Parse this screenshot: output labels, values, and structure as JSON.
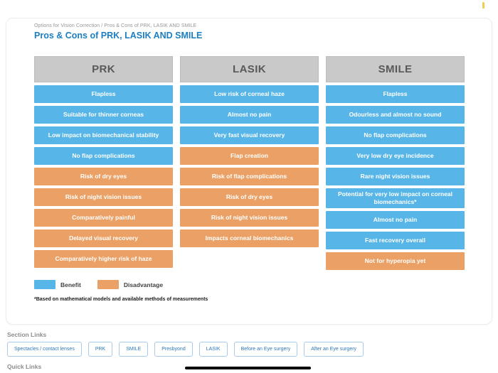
{
  "page": {
    "breadcrumb": "Options for Vision Correction / Pros & Cons of PRK, LASIK AND SMILE",
    "title": "Pros & Cons of PRK, LASIK AND SMILE"
  },
  "table": {
    "columns": [
      {
        "header": "PRK",
        "cells": [
          {
            "text": "Flapless",
            "type": "benefit"
          },
          {
            "text": "Suitable for thinner corneas",
            "type": "benefit"
          },
          {
            "text": "Low impact on biomechanical stability",
            "type": "benefit"
          },
          {
            "text": "No flap complications",
            "type": "benefit"
          },
          {
            "text": "Risk of dry eyes",
            "type": "disadvantage"
          },
          {
            "text": "Risk of night vision issues",
            "type": "disadvantage"
          },
          {
            "text": "Comparatively painful",
            "type": "disadvantage"
          },
          {
            "text": "Delayed visual recovery",
            "type": "disadvantage"
          },
          {
            "text": "Comparatively higher risk of haze",
            "type": "disadvantage"
          }
        ]
      },
      {
        "header": "LASIK",
        "cells": [
          {
            "text": "Low risk of corneal haze",
            "type": "benefit"
          },
          {
            "text": "Almost no pain",
            "type": "benefit"
          },
          {
            "text": "Very fast visual recovery",
            "type": "benefit"
          },
          {
            "text": "Flap creation",
            "type": "disadvantage"
          },
          {
            "text": "Risk of flap complications",
            "type": "disadvantage"
          },
          {
            "text": "Risk of dry eyes",
            "type": "disadvantage"
          },
          {
            "text": "Risk of night vision issues",
            "type": "disadvantage"
          },
          {
            "text": "Impacts corneal biomechanics",
            "type": "disadvantage"
          }
        ]
      },
      {
        "header": "SMILE",
        "cells": [
          {
            "text": "Flapless",
            "type": "benefit"
          },
          {
            "text": "Odourless and almost no sound",
            "type": "benefit"
          },
          {
            "text": "No flap complications",
            "type": "benefit"
          },
          {
            "text": "Very low dry eye incidence",
            "type": "benefit"
          },
          {
            "text": "Rare night vision issues",
            "type": "benefit"
          },
          {
            "text": "Potential for very low impact on corneal biomechanics*",
            "type": "benefit"
          },
          {
            "text": "Almost no pain",
            "type": "benefit"
          },
          {
            "text": "Fast recovery overall",
            "type": "benefit"
          },
          {
            "text": "Not for hyperopia yet",
            "type": "disadvantage"
          }
        ]
      }
    ]
  },
  "legend": {
    "benefit_label": "Benefit",
    "disadvantage_label": "Disadvantage"
  },
  "footnote": "*Based on mathematical models and available methods of measurements",
  "section_links": {
    "heading": "Section Links",
    "links": [
      "Spectacles / contact lenses",
      "PRK",
      "SMILE",
      "Presbyond",
      "LASIK",
      "Before an Eye surgery",
      "After an Eye surgery"
    ]
  },
  "quick_links": {
    "heading": "Quick Links"
  },
  "colors": {
    "benefit": "#57b6e7",
    "disadvantage": "#eba166",
    "header_bg": "#c9c9c9",
    "header_text": "#58595b",
    "accent": "#1b7ec2",
    "link": "#2f79b8",
    "indicator": "#f0cc4f"
  }
}
